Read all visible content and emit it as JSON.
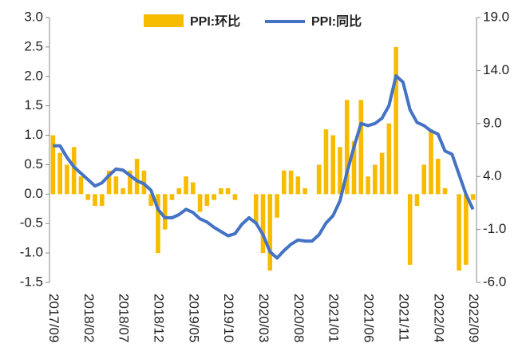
{
  "chart_data": {
    "type": "bar_line",
    "categories": [
      "2017/09",
      null,
      null,
      null,
      null,
      "2018/02",
      null,
      null,
      null,
      null,
      "2018/07",
      null,
      null,
      null,
      null,
      "2018/12",
      null,
      null,
      null,
      null,
      "2019/05",
      null,
      null,
      null,
      null,
      "2019/10",
      null,
      null,
      null,
      null,
      "2020/03",
      null,
      null,
      null,
      null,
      "2020/08",
      null,
      null,
      null,
      null,
      "2021/01",
      null,
      null,
      null,
      null,
      "2021/06",
      null,
      null,
      null,
      null,
      "2021/11",
      null,
      null,
      null,
      null,
      "2022/04",
      null,
      null,
      null,
      null,
      "2022/09"
    ],
    "series": [
      {
        "name": "PPI:环比",
        "type": "bar",
        "color": "#f7bc00",
        "axis": "y",
        "values": [
          1.0,
          0.7,
          0.5,
          0.8,
          0.3,
          -0.1,
          -0.2,
          -0.2,
          0.4,
          0.3,
          0.1,
          0.4,
          0.6,
          0.4,
          -0.2,
          -1.0,
          -0.6,
          -0.1,
          0.1,
          0.3,
          0.2,
          -0.3,
          -0.2,
          -0.1,
          0.1,
          0.1,
          -0.1,
          0.0,
          0.0,
          -0.5,
          -1.0,
          -1.3,
          -0.4,
          0.4,
          0.4,
          0.3,
          0.1,
          0.0,
          0.5,
          1.1,
          1.0,
          0.8,
          1.6,
          0.9,
          1.6,
          0.3,
          0.5,
          0.7,
          1.2,
          2.5,
          0.0,
          -1.2,
          -0.2,
          0.5,
          1.1,
          0.6,
          0.1,
          0.0,
          -1.3,
          -1.2,
          -0.1
        ]
      },
      {
        "name": "PPI:同比",
        "type": "line",
        "color": "#4472c4",
        "axis": "y2",
        "values": [
          6.9,
          6.9,
          5.8,
          4.9,
          4.3,
          3.7,
          3.1,
          3.4,
          4.1,
          4.7,
          4.6,
          4.1,
          3.6,
          3.3,
          2.7,
          0.9,
          0.1,
          0.1,
          0.4,
          0.9,
          0.6,
          0.0,
          -0.3,
          -0.8,
          -1.2,
          -1.6,
          -1.4,
          -0.5,
          0.1,
          -0.4,
          -1.5,
          -3.1,
          -3.7,
          -3.0,
          -2.4,
          -2.0,
          -2.1,
          -2.1,
          -1.5,
          -0.4,
          0.3,
          1.7,
          4.4,
          6.8,
          9.0,
          8.8,
          9.0,
          9.5,
          10.7,
          13.5,
          12.9,
          10.3,
          9.1,
          8.8,
          8.3,
          8.0,
          6.4,
          6.1,
          4.2,
          2.3,
          0.9
        ]
      }
    ],
    "ylim": [
      -1.5,
      3.0
    ],
    "yticks": [
      {
        "value": 3.0,
        "label": "3.0"
      },
      2.5,
      {
        "value": 2.0,
        "label": "2.0"
      },
      1.5,
      {
        "value": 1.0,
        "label": "1.0"
      },
      0.5,
      {
        "value": 0.0,
        "label": "0.0"
      },
      -0.5,
      {
        "value": -1.0,
        "label": "-1.0"
      },
      -1.5
    ],
    "y2lim": [
      -6,
      19
    ],
    "y2ticks": [
      {
        "value": 19,
        "label": "19.0"
      },
      {
        "value": 14,
        "label": "14.0"
      },
      {
        "value": 9,
        "label": "9.0"
      },
      {
        "value": 4,
        "label": "4.0"
      },
      {
        "value": -1,
        "label": "-1.0"
      },
      {
        "value": -6,
        "label": "-6.0"
      }
    ],
    "legend": "top"
  }
}
